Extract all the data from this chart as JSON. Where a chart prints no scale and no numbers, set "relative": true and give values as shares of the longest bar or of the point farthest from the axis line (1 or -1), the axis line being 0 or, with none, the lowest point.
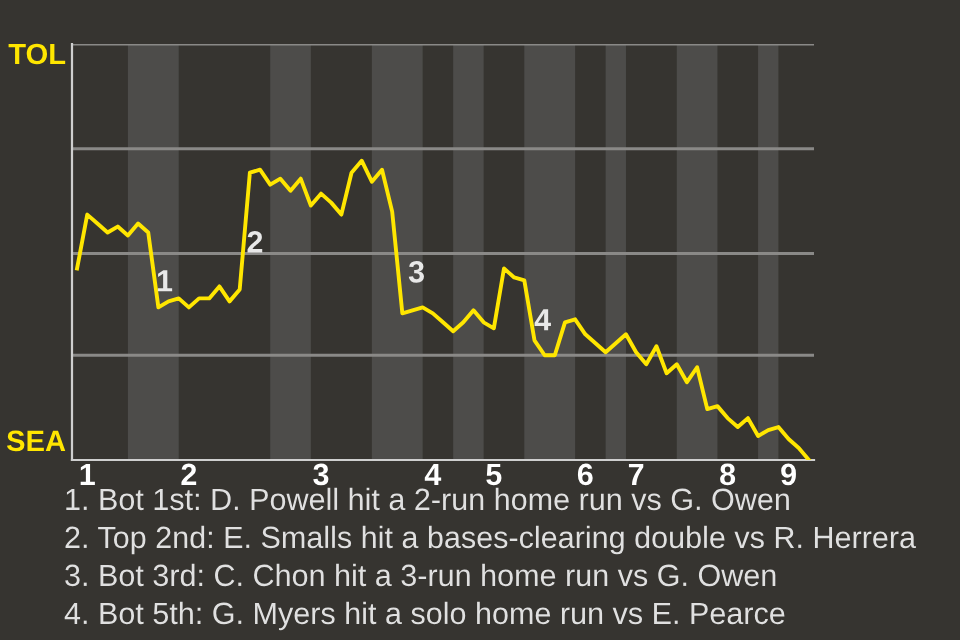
{
  "chart_data": {
    "type": "line",
    "relative": true,
    "categories": [
      null,
      "1",
      null,
      null,
      null,
      null,
      null,
      null,
      null,
      null,
      null,
      "2",
      null,
      null,
      null,
      null,
      null,
      null,
      null,
      null,
      null,
      null,
      null,
      null,
      "3",
      null,
      null,
      null,
      null,
      null,
      null,
      null,
      null,
      null,
      null,
      "4",
      null,
      null,
      null,
      null,
      null,
      "5",
      null,
      null,
      null,
      null,
      null,
      null,
      null,
      null,
      "6",
      null,
      null,
      null,
      null,
      "7",
      null,
      null,
      null,
      null,
      null,
      null,
      null,
      null,
      "8",
      null,
      null,
      null,
      null,
      null,
      "9",
      null,
      null
    ],
    "series": [
      {
        "color": "#ffe600",
        "values": [
          0.64,
          0.82,
          0.79,
          0.76,
          0.78,
          0.75,
          0.79,
          0.76,
          0.51,
          0.53,
          0.54,
          0.51,
          0.54,
          0.54,
          0.58,
          0.53,
          0.57,
          0.96,
          0.97,
          0.92,
          0.94,
          0.9,
          0.94,
          0.85,
          0.89,
          0.86,
          0.82,
          0.96,
          1,
          0.93,
          0.97,
          0.83,
          0.49,
          0.5,
          0.51,
          0.49,
          0.46,
          0.43,
          0.46,
          0.5,
          0.46,
          0.44,
          0.64,
          0.61,
          0.6,
          0.4,
          0.35,
          0.35,
          0.46,
          0.47,
          0.42,
          0.39,
          0.36,
          0.39,
          0.42,
          0.36,
          0.32,
          0.38,
          0.29,
          0.32,
          0.26,
          0.31,
          0.17,
          0.18,
          0.14,
          0.11,
          0.14,
          0.08,
          0.1,
          0.11,
          0.07,
          0.04,
          0
        ]
      }
    ],
    "ref_lines": [
      {
        "axis": "y",
        "value": 0.35,
        "color": "#8a8987"
      },
      {
        "axis": "y",
        "value": 0.69,
        "color": "#8a8987"
      },
      {
        "axis": "y",
        "value": 1.04,
        "color": "#8a8987"
      },
      {
        "axis": "y",
        "value": 1.39,
        "color": "#8a8987"
      }
    ],
    "annotations": [
      "TOL",
      "SEA",
      "1",
      "2",
      "3",
      "4",
      "1. Bot 1st: D. Powell hit a 2-run home run vs G. Owen",
      "2. Top 2nd: E. Smalls hit a bases-clearing double vs R. Herrera",
      "3. Bot 3rd: C. Chon hit a 3-run home run vs G. Owen",
      "4. Bot 5th: G. Myers hit a solo home run vs E. Pearce"
    ]
  }
}
